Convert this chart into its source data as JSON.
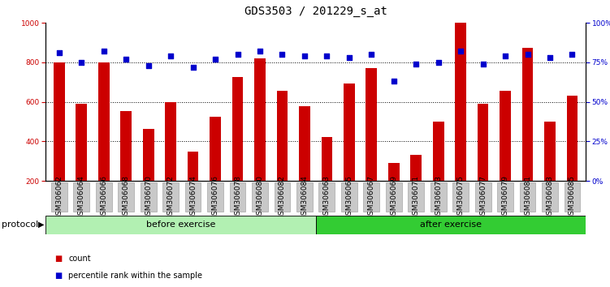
{
  "title": "GDS3503 / 201229_s_at",
  "categories": [
    "GSM306062",
    "GSM306064",
    "GSM306066",
    "GSM306068",
    "GSM306070",
    "GSM306072",
    "GSM306074",
    "GSM306076",
    "GSM306078",
    "GSM306080",
    "GSM306082",
    "GSM306084",
    "GSM306063",
    "GSM306065",
    "GSM306067",
    "GSM306069",
    "GSM306071",
    "GSM306073",
    "GSM306075",
    "GSM306077",
    "GSM306079",
    "GSM306081",
    "GSM306083",
    "GSM306085"
  ],
  "bar_values": [
    800,
    590,
    800,
    555,
    465,
    600,
    350,
    525,
    725,
    820,
    655,
    580,
    420,
    695,
    770,
    290,
    330,
    500,
    1000,
    590,
    655,
    875,
    500,
    630
  ],
  "dot_values": [
    81,
    75,
    82,
    77,
    73,
    79,
    72,
    77,
    80,
    82,
    80,
    79,
    79,
    78,
    80,
    63,
    74,
    75,
    82,
    74,
    79,
    80,
    78,
    80
  ],
  "n_before": 12,
  "n_after": 12,
  "label_before": "before exercise",
  "label_after": "after exercise",
  "protocol_label": "protocol",
  "bar_color": "#cc0000",
  "dot_color": "#0000cc",
  "ylim_left": [
    200,
    1000
  ],
  "ylim_right": [
    0,
    100
  ],
  "yticks_left": [
    200,
    400,
    600,
    800,
    1000
  ],
  "yticks_right": [
    0,
    25,
    50,
    75,
    100
  ],
  "grid_values": [
    400,
    600,
    800
  ],
  "legend_count": "count",
  "legend_pct": "percentile rank within the sample",
  "color_before": "#b2f0b2",
  "color_after": "#33cc33",
  "title_fontsize": 10,
  "tick_fontsize": 6.5,
  "label_fontsize": 8,
  "xtick_bg": "#c8c8c8"
}
